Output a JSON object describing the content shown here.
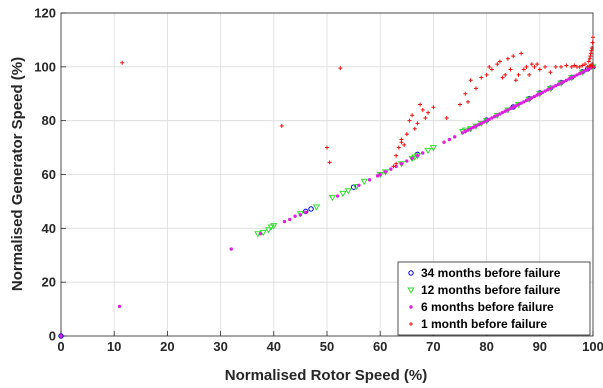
{
  "chart_data": {
    "type": "scatter",
    "title": "",
    "xlabel": "Normalised Rotor Speed (%)",
    "ylabel": "Normalised Generator Speed (%)",
    "xlim": [
      0,
      100
    ],
    "ylim": [
      0,
      120
    ],
    "xticks": [
      0,
      10,
      20,
      30,
      40,
      50,
      60,
      70,
      80,
      90,
      100
    ],
    "yticks": [
      0,
      20,
      40,
      60,
      80,
      100,
      120
    ],
    "grid": true,
    "legend_position": "bottom-right",
    "series": [
      {
        "name": "34 months before failure",
        "marker": "circle",
        "color": "#0000cc",
        "points": [
          [
            0,
            0
          ],
          [
            46,
            46.3
          ],
          [
            47,
            47.2
          ],
          [
            55,
            55.3
          ],
          [
            67,
            67.5
          ],
          [
            80,
            80.2
          ],
          [
            85,
            85.1
          ],
          [
            88,
            88.2
          ],
          [
            90,
            90.3
          ],
          [
            92,
            92.1
          ],
          [
            94,
            94.2
          ],
          [
            96,
            96.1
          ],
          [
            98,
            98.2
          ],
          [
            99,
            99.2
          ],
          [
            100,
            100
          ]
        ]
      },
      {
        "name": "12 months before failure",
        "marker": "triangle-down",
        "color": "#33dd33",
        "points": [
          [
            37,
            38
          ],
          [
            38,
            38.5
          ],
          [
            39,
            39.5
          ],
          [
            39.5,
            40.5
          ],
          [
            40,
            41
          ],
          [
            45,
            45.5
          ],
          [
            48,
            48
          ],
          [
            51,
            51.5
          ],
          [
            53,
            53
          ],
          [
            54,
            54
          ],
          [
            55.5,
            55.5
          ],
          [
            57,
            57.5
          ],
          [
            60,
            60
          ],
          [
            61,
            61
          ],
          [
            64,
            64
          ],
          [
            66,
            66
          ],
          [
            66.5,
            66.5
          ],
          [
            67,
            67
          ],
          [
            69,
            69
          ],
          [
            70,
            70
          ],
          [
            75.5,
            76
          ],
          [
            76,
            76.5
          ],
          [
            77,
            77
          ],
          [
            78,
            78
          ],
          [
            79,
            79
          ],
          [
            80,
            80
          ],
          [
            82,
            82
          ],
          [
            84,
            84
          ],
          [
            86,
            86
          ],
          [
            88,
            88
          ],
          [
            90,
            90
          ],
          [
            92,
            92
          ],
          [
            94,
            94
          ],
          [
            96,
            96
          ],
          [
            98,
            98
          ],
          [
            100,
            100
          ]
        ]
      },
      {
        "name": "6 months before failure",
        "marker": "dot",
        "color": "#dd22dd",
        "points": [
          [
            0,
            0
          ],
          [
            11,
            11
          ],
          [
            32,
            32.3
          ],
          [
            37.5,
            38
          ],
          [
            42,
            42.5
          ],
          [
            43,
            43.3
          ],
          [
            44,
            44.5
          ],
          [
            45,
            45
          ],
          [
            46,
            46
          ],
          [
            52,
            52
          ],
          [
            56,
            56
          ],
          [
            58,
            58
          ],
          [
            59.5,
            59.5
          ],
          [
            60,
            60
          ],
          [
            61,
            61
          ],
          [
            62,
            62
          ],
          [
            63,
            63
          ],
          [
            64,
            64
          ],
          [
            65,
            65
          ],
          [
            66,
            66
          ],
          [
            67,
            67
          ],
          [
            68,
            68
          ],
          [
            72,
            72
          ],
          [
            73,
            73
          ],
          [
            74,
            74
          ],
          [
            75.5,
            75.5
          ],
          [
            76,
            76
          ],
          [
            76.5,
            76.5
          ],
          [
            77,
            77
          ],
          [
            77.5,
            77.5
          ],
          [
            78,
            78
          ],
          [
            78.5,
            78.5
          ],
          [
            79,
            79
          ],
          [
            79.5,
            79.5
          ],
          [
            80,
            80
          ],
          [
            80.5,
            80.5
          ],
          [
            81,
            81
          ],
          [
            81.5,
            81.5
          ],
          [
            82,
            82
          ],
          [
            82.5,
            82.5
          ],
          [
            83,
            83
          ],
          [
            83.5,
            83.5
          ],
          [
            84,
            84
          ],
          [
            84.5,
            84.5
          ],
          [
            85,
            85
          ],
          [
            85.5,
            85.5
          ],
          [
            86,
            86
          ],
          [
            86.5,
            86.5
          ],
          [
            87,
            87
          ],
          [
            87.5,
            87.5
          ],
          [
            88,
            88
          ],
          [
            88.5,
            88.5
          ],
          [
            89,
            89
          ],
          [
            89.5,
            89.5
          ],
          [
            90,
            90
          ],
          [
            90.5,
            90.5
          ],
          [
            91,
            91
          ],
          [
            91.5,
            91.5
          ],
          [
            92,
            92
          ],
          [
            92.5,
            92.5
          ],
          [
            93,
            93
          ],
          [
            93.5,
            93.5
          ],
          [
            94,
            94
          ],
          [
            94.5,
            94.5
          ],
          [
            95,
            95
          ],
          [
            95.5,
            95.5
          ],
          [
            96,
            96
          ],
          [
            96.5,
            96.5
          ],
          [
            97,
            97
          ],
          [
            97.5,
            97.5
          ],
          [
            98,
            98
          ],
          [
            98.5,
            98.5
          ],
          [
            99,
            99
          ],
          [
            99.5,
            99.5
          ],
          [
            100,
            100
          ]
        ]
      },
      {
        "name": "1 month before failure",
        "marker": "plus",
        "color": "#ee1111",
        "points": [
          [
            11.5,
            101.5
          ],
          [
            41.5,
            78
          ],
          [
            50,
            70
          ],
          [
            50.5,
            64.5
          ],
          [
            52.5,
            99.5
          ],
          [
            62.5,
            63
          ],
          [
            63,
            64
          ],
          [
            63,
            67
          ],
          [
            63.5,
            70
          ],
          [
            64,
            72
          ],
          [
            64,
            73
          ],
          [
            64.5,
            71
          ],
          [
            65,
            75
          ],
          [
            65.5,
            80
          ],
          [
            66,
            82
          ],
          [
            66.5,
            77
          ],
          [
            67,
            79
          ],
          [
            67.5,
            86
          ],
          [
            68,
            84
          ],
          [
            68.5,
            81
          ],
          [
            69,
            83
          ],
          [
            70,
            85
          ],
          [
            72.5,
            81
          ],
          [
            75,
            86
          ],
          [
            76,
            90
          ],
          [
            76.5,
            87
          ],
          [
            77,
            95
          ],
          [
            78,
            92
          ],
          [
            79,
            96
          ],
          [
            80,
            97
          ],
          [
            80.5,
            100
          ],
          [
            81,
            99
          ],
          [
            82,
            101
          ],
          [
            82.5,
            102
          ],
          [
            83,
            96
          ],
          [
            83.5,
            97
          ],
          [
            84,
            103
          ],
          [
            84.5,
            99
          ],
          [
            85,
            104
          ],
          [
            85.5,
            95
          ],
          [
            86,
            97
          ],
          [
            86.5,
            105
          ],
          [
            87,
            99
          ],
          [
            87.5,
            100
          ],
          [
            88,
            97
          ],
          [
            88.5,
            101
          ],
          [
            89,
            100
          ],
          [
            89.5,
            101
          ],
          [
            90,
            99
          ],
          [
            91,
            100
          ],
          [
            92,
            98
          ],
          [
            93,
            100
          ],
          [
            94,
            100
          ],
          [
            95,
            100.5
          ],
          [
            96,
            100
          ],
          [
            96.5,
            100.5
          ],
          [
            97,
            100
          ],
          [
            97.5,
            100
          ],
          [
            98,
            100.5
          ],
          [
            98.5,
            101
          ],
          [
            99,
            100
          ],
          [
            99.2,
            102
          ],
          [
            99.4,
            103
          ],
          [
            99.5,
            104
          ],
          [
            99.6,
            105
          ],
          [
            99.7,
            106
          ],
          [
            99.8,
            107
          ],
          [
            99.9,
            109
          ],
          [
            100,
            111
          ],
          [
            99.8,
            101
          ],
          [
            99.6,
            100.5
          ],
          [
            99.3,
            100.2
          ],
          [
            100,
            100
          ]
        ]
      }
    ]
  }
}
